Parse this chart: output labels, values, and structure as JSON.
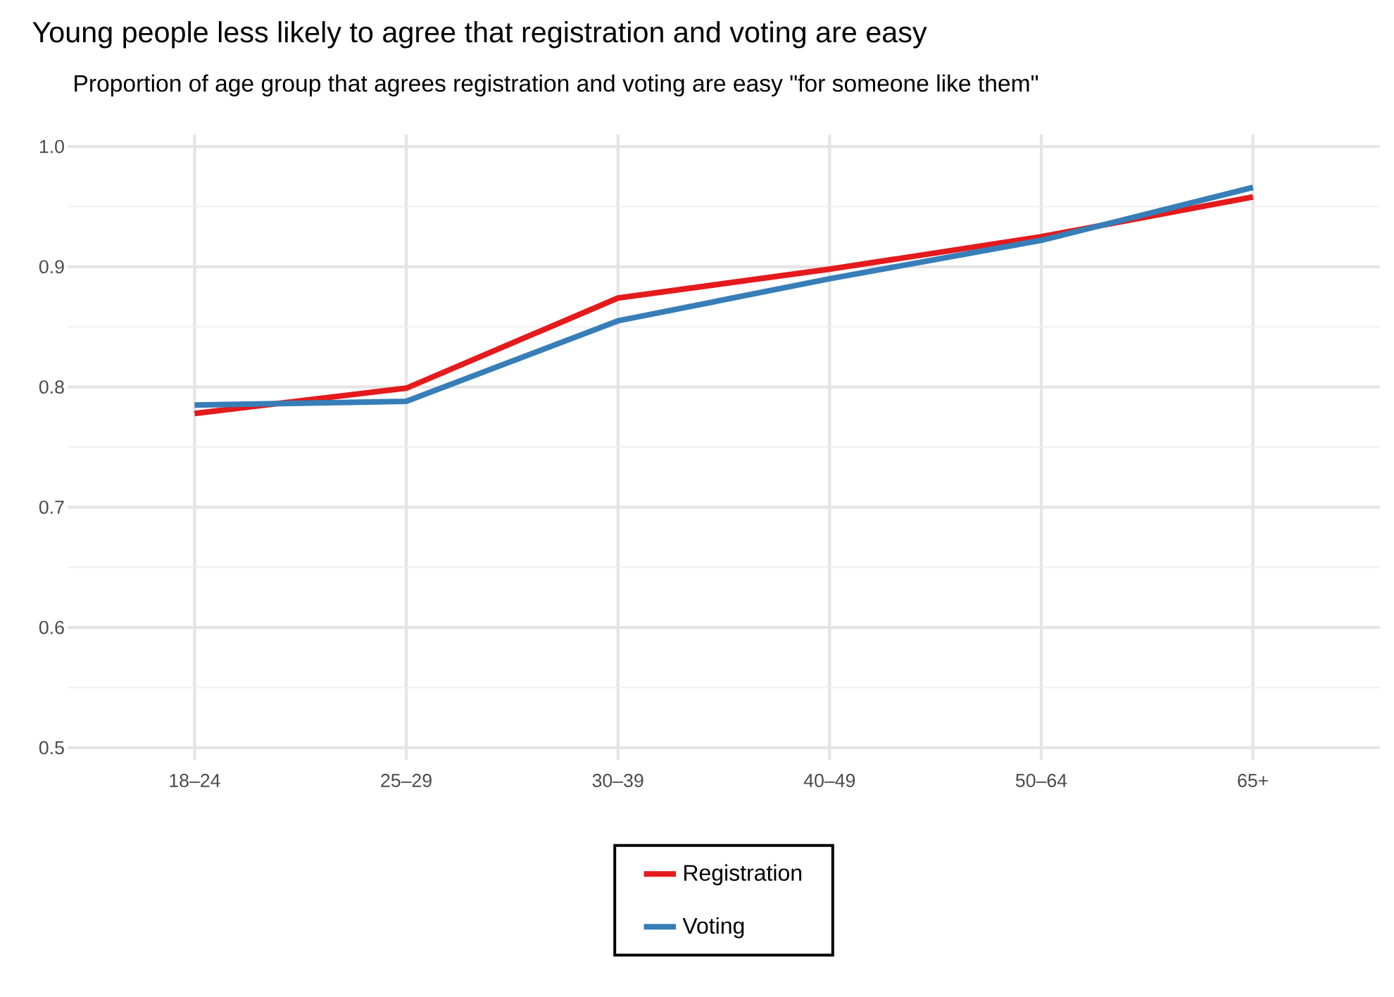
{
  "chart_data": {
    "type": "line",
    "title": "Young people less likely to agree that registration and voting are easy",
    "subtitle": "Proportion of age group that agrees registration and voting are easy \"for someone like them\"",
    "categories": [
      "18–24",
      "25–29",
      "30–39",
      "40–49",
      "50–64",
      "65+"
    ],
    "series": [
      {
        "name": "Registration",
        "color": "#e41a1c",
        "values": [
          0.778,
          0.799,
          0.874,
          0.898,
          0.925,
          0.958
        ]
      },
      {
        "name": "Voting",
        "color": "#377eb8",
        "values": [
          0.785,
          0.788,
          0.855,
          0.89,
          0.922,
          0.966
        ]
      }
    ],
    "ylim": [
      0.49,
      1.01
    ],
    "yticks": [
      0.5,
      0.6,
      0.7,
      0.8,
      0.9,
      {
        "value": 1,
        "label": "1.0"
      }
    ],
    "grid": true,
    "legend": "bottom",
    "marker": "none",
    "line_style": "solid"
  }
}
